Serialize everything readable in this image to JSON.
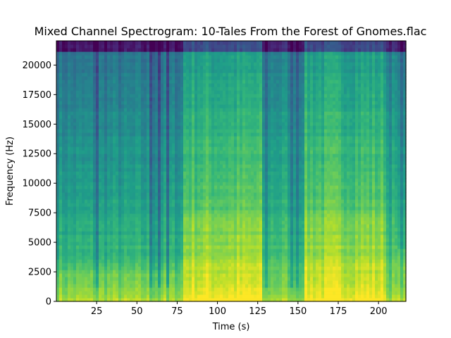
{
  "chart_data": {
    "type": "heatmap",
    "title": "Mixed Channel Spectrogram: 10-Tales From the Forest of Gnomes.flac",
    "xlabel": "Time (s)",
    "ylabel": "Frequency (Hz)",
    "xlim": [
      0,
      217
    ],
    "ylim": [
      0,
      22050
    ],
    "x_ticks": [
      25,
      50,
      75,
      100,
      125,
      150,
      175,
      200
    ],
    "x_tick_labels": [
      "25",
      "50",
      "75",
      "100",
      "125",
      "150",
      "175",
      "200"
    ],
    "y_ticks": [
      0,
      2500,
      5000,
      7500,
      10000,
      12500,
      15000,
      17500,
      20000
    ],
    "y_tick_labels": [
      "0",
      "2500",
      "5000",
      "7500",
      "10000",
      "12500",
      "15000",
      "17500",
      "20000"
    ],
    "colormap": "viridis",
    "loud_segments": [
      {
        "start": 79,
        "end": 105
      },
      {
        "start": 105,
        "end": 128
      },
      {
        "start": 154,
        "end": 205
      }
    ],
    "quiet_marks": [
      25,
      59,
      64,
      69,
      130,
      146,
      150
    ]
  }
}
